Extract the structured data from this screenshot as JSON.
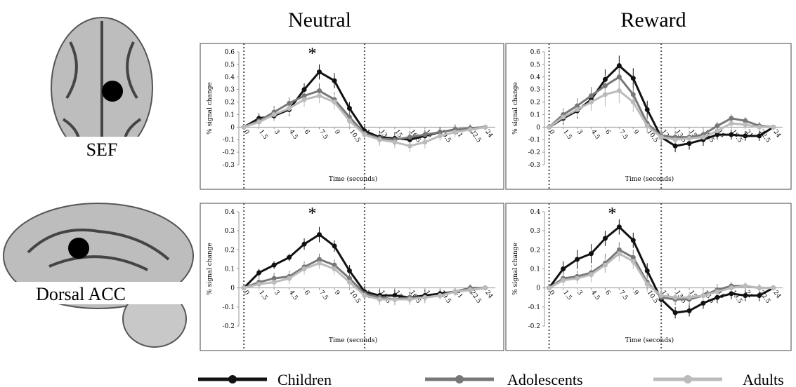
{
  "columns": [
    "Neutral",
    "Reward"
  ],
  "regions": [
    "SEF",
    "Dorsal ACC"
  ],
  "chart_data": [
    {
      "type": "line",
      "ylabel": "% signal change",
      "xlabel": "Time (seconds)",
      "annotation": "*",
      "x": [
        0,
        1.5,
        3,
        4.5,
        6,
        7.5,
        9,
        10.5,
        12,
        13.5,
        15,
        16.5,
        18,
        19.5,
        21,
        22.5,
        24
      ],
      "xlim": [
        -0.5,
        25
      ],
      "xticks": [
        0,
        1.5,
        3,
        4.5,
        6,
        7.5,
        9,
        10.5,
        12,
        13.5,
        15,
        16.5,
        18,
        19.5,
        21,
        22.5,
        24
      ],
      "ylim": [
        -0.3,
        0.6
      ],
      "yticks": [
        -0.3,
        -0.2,
        -0.1,
        0,
        0.1,
        0.2,
        0.3,
        0.4,
        0.5,
        0.6
      ],
      "vlines": [
        0,
        12
      ],
      "series": [
        {
          "name": "Children",
          "color": "#111111",
          "values": [
            0,
            0.07,
            0.09,
            0.14,
            0.3,
            0.44,
            0.37,
            0.15,
            -0.03,
            -0.08,
            -0.09,
            -0.1,
            -0.07,
            -0.04,
            -0.02,
            -0.01,
            0
          ],
          "errors": [
            0,
            0.04,
            0.04,
            0.05,
            0.05,
            0.06,
            0.06,
            0.05,
            0.04,
            0.05,
            0.05,
            0.05,
            0.04,
            0.04,
            0.04,
            0.03,
            0
          ]
        },
        {
          "name": "Adolescents",
          "color": "#777777",
          "values": [
            0,
            0.05,
            0.12,
            0.19,
            0.25,
            0.29,
            0.22,
            0.08,
            -0.05,
            -0.09,
            -0.1,
            -0.08,
            -0.06,
            -0.04,
            -0.02,
            -0.01,
            0
          ],
          "errors": [
            0,
            0.04,
            0.05,
            0.05,
            0.05,
            0.06,
            0.06,
            0.05,
            0.04,
            0.05,
            0.05,
            0.05,
            0.04,
            0.04,
            0.04,
            0.03,
            0
          ]
        },
        {
          "name": "Adults",
          "color": "#bbbbbb",
          "values": [
            0,
            0.04,
            0.1,
            0.15,
            0.22,
            0.25,
            0.2,
            0.05,
            -0.06,
            -0.1,
            -0.12,
            -0.15,
            -0.12,
            -0.07,
            -0.04,
            -0.02,
            0
          ],
          "errors": [
            0,
            0.04,
            0.05,
            0.05,
            0.06,
            0.06,
            0.06,
            0.05,
            0.04,
            0.05,
            0.05,
            0.05,
            0.05,
            0.04,
            0.04,
            0.03,
            0
          ]
        }
      ]
    },
    {
      "type": "line",
      "ylabel": "% signal change",
      "xlabel": "Time (seconds)",
      "x": [
        0,
        1.5,
        3,
        4.5,
        6,
        7.5,
        9,
        10.5,
        12,
        13.5,
        15,
        16.5,
        18,
        19.5,
        21,
        22.5,
        24
      ],
      "xlim": [
        -0.5,
        25
      ],
      "xticks": [
        0,
        1.5,
        3,
        4.5,
        6,
        7.5,
        9,
        10.5,
        12,
        13.5,
        15,
        16.5,
        18,
        19.5,
        21,
        22.5,
        24
      ],
      "ylim": [
        -0.3,
        0.6
      ],
      "yticks": [
        -0.3,
        -0.2,
        -0.1,
        0,
        0.1,
        0.2,
        0.3,
        0.4,
        0.5,
        0.6
      ],
      "vlines": [
        0,
        12
      ],
      "series": [
        {
          "name": "Children",
          "color": "#111111",
          "values": [
            0,
            0.07,
            0.13,
            0.22,
            0.38,
            0.49,
            0.39,
            0.14,
            -0.08,
            -0.15,
            -0.13,
            -0.1,
            -0.06,
            -0.06,
            -0.07,
            -0.07,
            0
          ],
          "errors": [
            0,
            0.05,
            0.06,
            0.07,
            0.08,
            0.08,
            0.08,
            0.07,
            0.06,
            0.05,
            0.05,
            0.05,
            0.04,
            0.04,
            0.04,
            0.04,
            0
          ]
        },
        {
          "name": "Adolescents",
          "color": "#777777",
          "values": [
            0,
            0.1,
            0.17,
            0.25,
            0.33,
            0.4,
            0.26,
            0.03,
            -0.07,
            -0.08,
            -0.08,
            -0.06,
            0.01,
            0.07,
            0.05,
            0.01,
            0
          ],
          "errors": [
            0,
            0.05,
            0.06,
            0.07,
            0.09,
            0.09,
            0.08,
            0.07,
            0.05,
            0.05,
            0.05,
            0.04,
            0.03,
            0.03,
            0.03,
            0.03,
            0
          ]
        },
        {
          "name": "Adults",
          "color": "#bbbbbb",
          "values": [
            0,
            0.08,
            0.14,
            0.2,
            0.26,
            0.29,
            0.2,
            0.01,
            -0.08,
            -0.1,
            -0.09,
            -0.08,
            -0.03,
            0.03,
            0.02,
            0,
            0
          ],
          "errors": [
            0,
            0.05,
            0.06,
            0.07,
            0.1,
            0.1,
            0.08,
            0.06,
            0.05,
            0.05,
            0.05,
            0.04,
            0.03,
            0.03,
            0.03,
            0.03,
            0
          ]
        }
      ]
    },
    {
      "type": "line",
      "ylabel": "% signal change",
      "xlabel": "Time (seconds)",
      "annotation": "*",
      "x": [
        0,
        1.5,
        3,
        4.5,
        6,
        7.5,
        9,
        10.5,
        12,
        13.5,
        15,
        16.5,
        18,
        19.5,
        21,
        22.5,
        24
      ],
      "xlim": [
        -0.5,
        25
      ],
      "xticks": [
        0,
        1.5,
        3,
        4.5,
        6,
        7.5,
        9,
        10.5,
        12,
        13.5,
        15,
        16.5,
        18,
        19.5,
        21,
        22.5,
        24
      ],
      "ylim": [
        -0.2,
        0.4
      ],
      "yticks": [
        -0.2,
        -0.1,
        0,
        0.1,
        0.2,
        0.3,
        0.4
      ],
      "vlines": [
        0,
        12
      ],
      "series": [
        {
          "name": "Children",
          "color": "#111111",
          "values": [
            0,
            0.08,
            0.12,
            0.16,
            0.23,
            0.28,
            0.22,
            0.09,
            -0.02,
            -0.04,
            -0.04,
            -0.05,
            -0.04,
            -0.03,
            -0.02,
            -0.01,
            0
          ],
          "errors": [
            0,
            0.02,
            0.02,
            0.02,
            0.03,
            0.04,
            0.03,
            0.03,
            0.03,
            0.03,
            0.03,
            0.03,
            0.03,
            0.02,
            0.02,
            0.02,
            0
          ]
        },
        {
          "name": "Adolescents",
          "color": "#777777",
          "values": [
            0,
            0.03,
            0.05,
            0.06,
            0.11,
            0.15,
            0.12,
            0.05,
            -0.03,
            -0.05,
            -0.06,
            -0.05,
            -0.05,
            -0.04,
            -0.02,
            0,
            0
          ],
          "errors": [
            0,
            0.03,
            0.03,
            0.03,
            0.03,
            0.03,
            0.03,
            0.03,
            0.03,
            0.03,
            0.03,
            0.03,
            0.03,
            0.02,
            0.02,
            0.02,
            0
          ]
        },
        {
          "name": "Adults",
          "color": "#bbbbbb",
          "values": [
            0,
            0.02,
            0.03,
            0.05,
            0.1,
            0.13,
            0.1,
            0.03,
            -0.04,
            -0.06,
            -0.06,
            -0.06,
            -0.05,
            -0.04,
            -0.02,
            -0.01,
            0
          ],
          "errors": [
            0,
            0.03,
            0.03,
            0.03,
            0.03,
            0.03,
            0.03,
            0.03,
            0.03,
            0.03,
            0.03,
            0.03,
            0.03,
            0.02,
            0.02,
            0.02,
            0
          ]
        }
      ]
    },
    {
      "type": "line",
      "ylabel": "% signal change",
      "xlabel": "Time (seconds)",
      "annotation": "*",
      "x": [
        0,
        1.5,
        3,
        4.5,
        6,
        7.5,
        9,
        10.5,
        12,
        13.5,
        15,
        16.5,
        18,
        19.5,
        21,
        22.5,
        24
      ],
      "xlim": [
        -0.5,
        25
      ],
      "xticks": [
        0,
        1.5,
        3,
        4.5,
        6,
        7.5,
        9,
        10.5,
        12,
        13.5,
        15,
        16.5,
        18,
        19.5,
        21,
        22.5,
        24
      ],
      "ylim": [
        -0.2,
        0.4
      ],
      "yticks": [
        -0.2,
        -0.1,
        0,
        0.1,
        0.2,
        0.3,
        0.4
      ],
      "vlines": [
        0,
        12
      ],
      "series": [
        {
          "name": "Children",
          "color": "#111111",
          "values": [
            0,
            0.1,
            0.15,
            0.18,
            0.26,
            0.32,
            0.25,
            0.09,
            -0.06,
            -0.13,
            -0.12,
            -0.08,
            -0.05,
            -0.03,
            -0.04,
            -0.04,
            0
          ],
          "errors": [
            0,
            0.04,
            0.05,
            0.05,
            0.04,
            0.04,
            0.04,
            0.04,
            0.04,
            0.03,
            0.03,
            0.03,
            0.03,
            0.03,
            0.03,
            0.03,
            0
          ]
        },
        {
          "name": "Adolescents",
          "color": "#777777",
          "values": [
            0,
            0.05,
            0.06,
            0.08,
            0.13,
            0.2,
            0.16,
            0.03,
            -0.05,
            -0.06,
            -0.06,
            -0.04,
            -0.01,
            0.01,
            0.01,
            0,
            0
          ],
          "errors": [
            0,
            0.03,
            0.03,
            0.04,
            0.05,
            0.04,
            0.04,
            0.04,
            0.04,
            0.03,
            0.03,
            0.03,
            0.03,
            0.02,
            0.02,
            0.02,
            0
          ]
        },
        {
          "name": "Adults",
          "color": "#bbbbbb",
          "values": [
            0,
            0.04,
            0.05,
            0.07,
            0.12,
            0.18,
            0.14,
            0.02,
            -0.04,
            -0.05,
            -0.05,
            -0.04,
            -0.02,
            0,
            0.01,
            0,
            0
          ],
          "errors": [
            0,
            0.03,
            0.03,
            0.04,
            0.04,
            0.04,
            0.04,
            0.04,
            0.04,
            0.03,
            0.03,
            0.03,
            0.03,
            0.02,
            0.02,
            0.02,
            0
          ]
        }
      ]
    }
  ]
}
